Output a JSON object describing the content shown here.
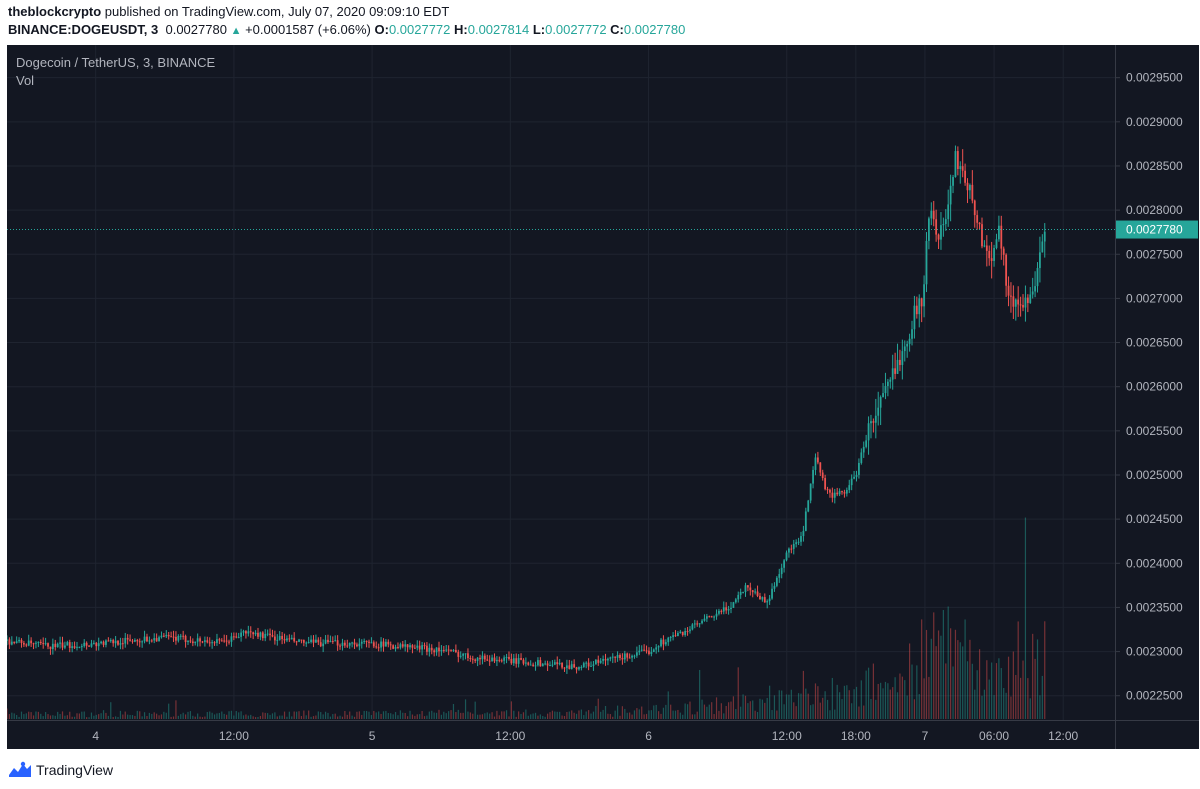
{
  "header": {
    "author": "theblockcrypto",
    "published_text": " published on TradingView.com, July 07, 2020 09:09:10 EDT"
  },
  "symbol_line": {
    "symbol": "BINANCE:DOGEUSDT, 3",
    "last": "0.0027780",
    "up_glyph": "▲",
    "change": "+0.0001587 (+6.06%)",
    "o_label": "O:",
    "o_value": "0.0027772",
    "h_label": "H:",
    "h_value": "0.0027814",
    "l_label": "L:",
    "l_value": "0.0027772",
    "c_label": "C:",
    "c_value": "0.0027780"
  },
  "legend": {
    "title": "Dogecoin / TetherUS, 3, BINANCE",
    "volume_label": "Vol"
  },
  "footer": {
    "brand": "TradingView",
    "logo_icon": "tradingview-logo-icon"
  },
  "colors": {
    "background": "#131722",
    "grid": "#1f2430",
    "up": "#26a69a",
    "down": "#ef5350",
    "axis_text": "#b2b5be",
    "price_line": "#26a69a"
  },
  "chart_data": {
    "type": "candlestick",
    "title": "Dogecoin / TetherUS, 3, BINANCE",
    "interval_minutes": 3,
    "price_axis": {
      "ylim": [
        0.0022225,
        0.002987
      ],
      "ticks": [
        "0.0022500",
        "0.0023000",
        "0.0023500",
        "0.0024000",
        "0.0024500",
        "0.0025000",
        "0.0025500",
        "0.0026000",
        "0.0026500",
        "0.0027000",
        "0.0027500",
        "0.0028000",
        "0.0028500",
        "0.0029000",
        "0.0029500"
      ]
    },
    "time_axis": {
      "range_hours": [
        -7.7,
        88.5
      ],
      "ticks": [
        {
          "label": "4",
          "hour": 0
        },
        {
          "label": "12:00",
          "hour": 12
        },
        {
          "label": "5",
          "hour": 24
        },
        {
          "label": "12:00",
          "hour": 36
        },
        {
          "label": "6",
          "hour": 48
        },
        {
          "label": "12:00",
          "hour": 60
        },
        {
          "label": "18:00",
          "hour": 66
        },
        {
          "label": "7",
          "hour": 72
        },
        {
          "label": "06:00",
          "hour": 78
        },
        {
          "label": "12:00",
          "hour": 84
        }
      ]
    },
    "price_path": {
      "hours": [
        -7.7,
        -4,
        0,
        6,
        11,
        13,
        18,
        24,
        30,
        33,
        36,
        39,
        42,
        45,
        48,
        49,
        51,
        53,
        55,
        56.5,
        58.3,
        60,
        61.3,
        62.5,
        63.5,
        64.3,
        65,
        66,
        67,
        69,
        70.5,
        71.3,
        71.8,
        72.3,
        73.5,
        74.7,
        75.5,
        76.5,
        77.5,
        78.5,
        79.3,
        80.2,
        81.6,
        82.4
      ],
      "prices": [
        0.002312,
        0.002306,
        0.002309,
        0.002316,
        0.00231,
        0.002322,
        0.00231,
        0.002309,
        0.002302,
        0.002293,
        0.00229,
        0.002286,
        0.002283,
        0.002292,
        0.0023,
        0.00231,
        0.002322,
        0.002336,
        0.00235,
        0.002375,
        0.002355,
        0.002412,
        0.002428,
        0.002519,
        0.00248,
        0.002476,
        0.002481,
        0.0025,
        0.002548,
        0.002605,
        0.002659,
        0.002689,
        0.002701,
        0.002795,
        0.002771,
        0.00286,
        0.00284,
        0.00279,
        0.002742,
        0.00278,
        0.002696,
        0.002693,
        0.00271,
        0.002778
      ]
    },
    "volume": {
      "max_approx": 100,
      "profile_hours": [
        -7.7,
        45,
        55,
        60,
        65,
        70,
        72,
        73.5,
        75,
        77,
        79,
        81,
        82.4
      ],
      "profile_levels": [
        4,
        5,
        12,
        16,
        22,
        35,
        55,
        65,
        45,
        40,
        35,
        40,
        55
      ]
    },
    "last_price": {
      "value": 0.002778,
      "label": "0.0027780"
    }
  }
}
